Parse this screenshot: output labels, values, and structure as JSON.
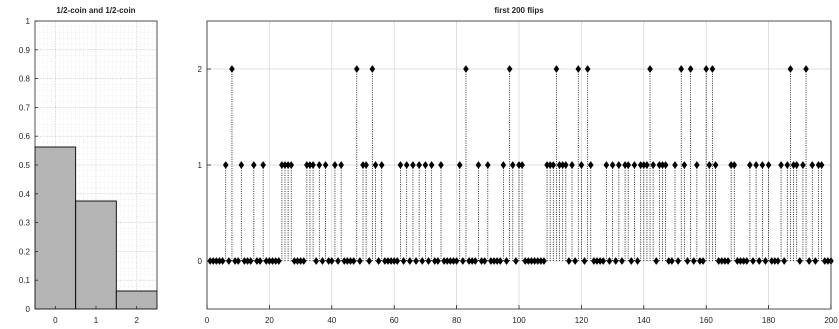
{
  "chart_data": [
    {
      "type": "bar",
      "title": "1/2-coin and 1/2-coin",
      "categories": [
        "0",
        "1",
        "2"
      ],
      "values": [
        0.5625,
        0.375,
        0.0625
      ],
      "ylim": [
        0,
        1
      ],
      "xlim": [
        -0.5,
        2.5
      ],
      "yticks": [
        "0",
        "0.1",
        "0.2",
        "0.3",
        "0.4",
        "0.5",
        "0.6",
        "0.7",
        "0.8",
        "0.9",
        "1"
      ],
      "xticks": [
        "0",
        "1",
        "2"
      ],
      "grid": "minor",
      "bar_color": "#b4b4b4"
    },
    {
      "type": "scatter",
      "title": "first 200 flips",
      "style": "stem",
      "xlim": [
        0,
        200
      ],
      "ylim": [
        -0.5,
        2.5
      ],
      "xticks": [
        "0",
        "20",
        "40",
        "60",
        "80",
        "100",
        "120",
        "140",
        "160",
        "180",
        "200"
      ],
      "yticks": [
        "0",
        "1",
        "2"
      ],
      "grid": "major",
      "marker": "diamond",
      "marker_color": "#000000",
      "x": [
        1,
        2,
        3,
        4,
        5,
        6,
        7,
        8,
        9,
        10,
        11,
        12,
        13,
        14,
        15,
        16,
        17,
        18,
        19,
        20,
        21,
        22,
        23,
        24,
        25,
        26,
        27,
        28,
        29,
        30,
        31,
        32,
        33,
        34,
        35,
        36,
        37,
        38,
        39,
        40,
        41,
        42,
        43,
        44,
        45,
        46,
        47,
        48,
        49,
        50,
        51,
        52,
        53,
        54,
        55,
        56,
        57,
        58,
        59,
        60,
        61,
        62,
        63,
        64,
        65,
        66,
        67,
        68,
        69,
        70,
        71,
        72,
        73,
        74,
        75,
        76,
        77,
        78,
        79,
        80,
        81,
        82,
        83,
        84,
        85,
        86,
        87,
        88,
        89,
        90,
        91,
        92,
        93,
        94,
        95,
        96,
        97,
        98,
        99,
        100,
        101,
        102,
        103,
        104,
        105,
        106,
        107,
        108,
        109,
        110,
        111,
        112,
        113,
        114,
        115,
        116,
        117,
        118,
        119,
        120,
        121,
        122,
        123,
        124,
        125,
        126,
        127,
        128,
        129,
        130,
        131,
        132,
        133,
        134,
        135,
        136,
        137,
        138,
        139,
        140,
        141,
        142,
        143,
        144,
        145,
        146,
        147,
        148,
        149,
        150,
        151,
        152,
        153,
        154,
        155,
        156,
        157,
        158,
        159,
        160,
        161,
        162,
        163,
        164,
        165,
        166,
        167,
        168,
        169,
        170,
        171,
        172,
        173,
        174,
        175,
        176,
        177,
        178,
        179,
        180,
        181,
        182,
        183,
        184,
        185,
        186,
        187,
        188,
        189,
        190,
        191,
        192,
        193,
        194,
        195,
        196,
        197,
        198,
        199,
        200
      ],
      "y": [
        0,
        0,
        0,
        0,
        0,
        1,
        0,
        2,
        0,
        0,
        1,
        0,
        0,
        0,
        1,
        0,
        0,
        1,
        0,
        0,
        0,
        0,
        0,
        1,
        1,
        1,
        1,
        0,
        0,
        0,
        0,
        1,
        1,
        1,
        0,
        1,
        0,
        1,
        0,
        0,
        1,
        0,
        1,
        0,
        0,
        0,
        0,
        2,
        0,
        1,
        1,
        0,
        2,
        1,
        0,
        1,
        0,
        0,
        0,
        0,
        0,
        1,
        0,
        1,
        0,
        1,
        0,
        1,
        0,
        1,
        0,
        1,
        0,
        0,
        1,
        0,
        0,
        0,
        0,
        0,
        1,
        0,
        2,
        0,
        0,
        0,
        1,
        0,
        0,
        1,
        0,
        0,
        0,
        0,
        1,
        0,
        2,
        1,
        0,
        1,
        1,
        0,
        0,
        0,
        0,
        0,
        0,
        0,
        1,
        1,
        1,
        2,
        1,
        1,
        1,
        0,
        1,
        0,
        2,
        1,
        0,
        2,
        1,
        0,
        0,
        0,
        0,
        1,
        0,
        1,
        0,
        1,
        0,
        1,
        1,
        0,
        1,
        0,
        1,
        1,
        1,
        2,
        1,
        0,
        1,
        1,
        1,
        0,
        0,
        1,
        0,
        2,
        1,
        0,
        2,
        0,
        1,
        0,
        0,
        2,
        1,
        2,
        1,
        0,
        0,
        0,
        0,
        1,
        1,
        0,
        0,
        0,
        0,
        1,
        0,
        1,
        0,
        1,
        0,
        1,
        0,
        0,
        0,
        1,
        0,
        1,
        2,
        1,
        1,
        0,
        1,
        2,
        0,
        1,
        0,
        1,
        1,
        0,
        0,
        0
      ]
    }
  ]
}
